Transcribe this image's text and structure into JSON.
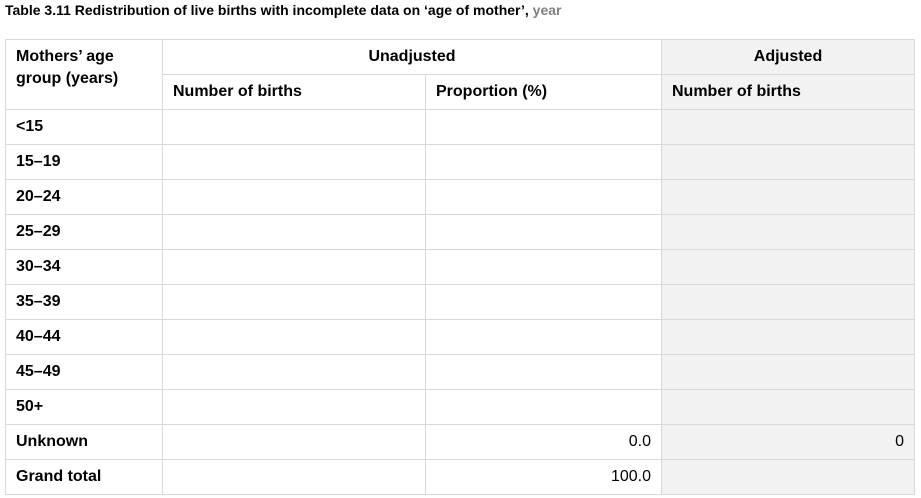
{
  "caption": {
    "title": "Table 3.11 Redistribution of live births with incomplete data on ‘age of mother’, ",
    "year": "year"
  },
  "header": {
    "age_group": "Mothers’ age group (years)",
    "unadjusted": "Unadjusted",
    "adjusted": "Adjusted",
    "number_of_births": "Number of births",
    "proportion": "Proportion (%)",
    "adjusted_number_of_births": "Number of births"
  },
  "rows": [
    {
      "age": "<15",
      "births": "",
      "proportion": "",
      "adjusted": ""
    },
    {
      "age": "15–19",
      "births": "",
      "proportion": "",
      "adjusted": ""
    },
    {
      "age": "20–24",
      "births": "",
      "proportion": "",
      "adjusted": ""
    },
    {
      "age": "25–29",
      "births": "",
      "proportion": "",
      "adjusted": ""
    },
    {
      "age": "30–34",
      "births": "",
      "proportion": "",
      "adjusted": ""
    },
    {
      "age": "35–39",
      "births": "",
      "proportion": "",
      "adjusted": ""
    },
    {
      "age": "40–44",
      "births": "",
      "proportion": "",
      "adjusted": ""
    },
    {
      "age": "45–49",
      "births": "",
      "proportion": "",
      "adjusted": ""
    },
    {
      "age": "50+",
      "births": "",
      "proportion": "",
      "adjusted": ""
    },
    {
      "age": "Unknown",
      "births": "",
      "proportion": "0.0",
      "adjusted": "0"
    },
    {
      "age": "Grand total",
      "births": "",
      "proportion": "100.0",
      "adjusted": ""
    }
  ],
  "colors": {
    "border": "#d9d9d9",
    "shaded": "#f2f2f2",
    "year_text": "#808080"
  }
}
